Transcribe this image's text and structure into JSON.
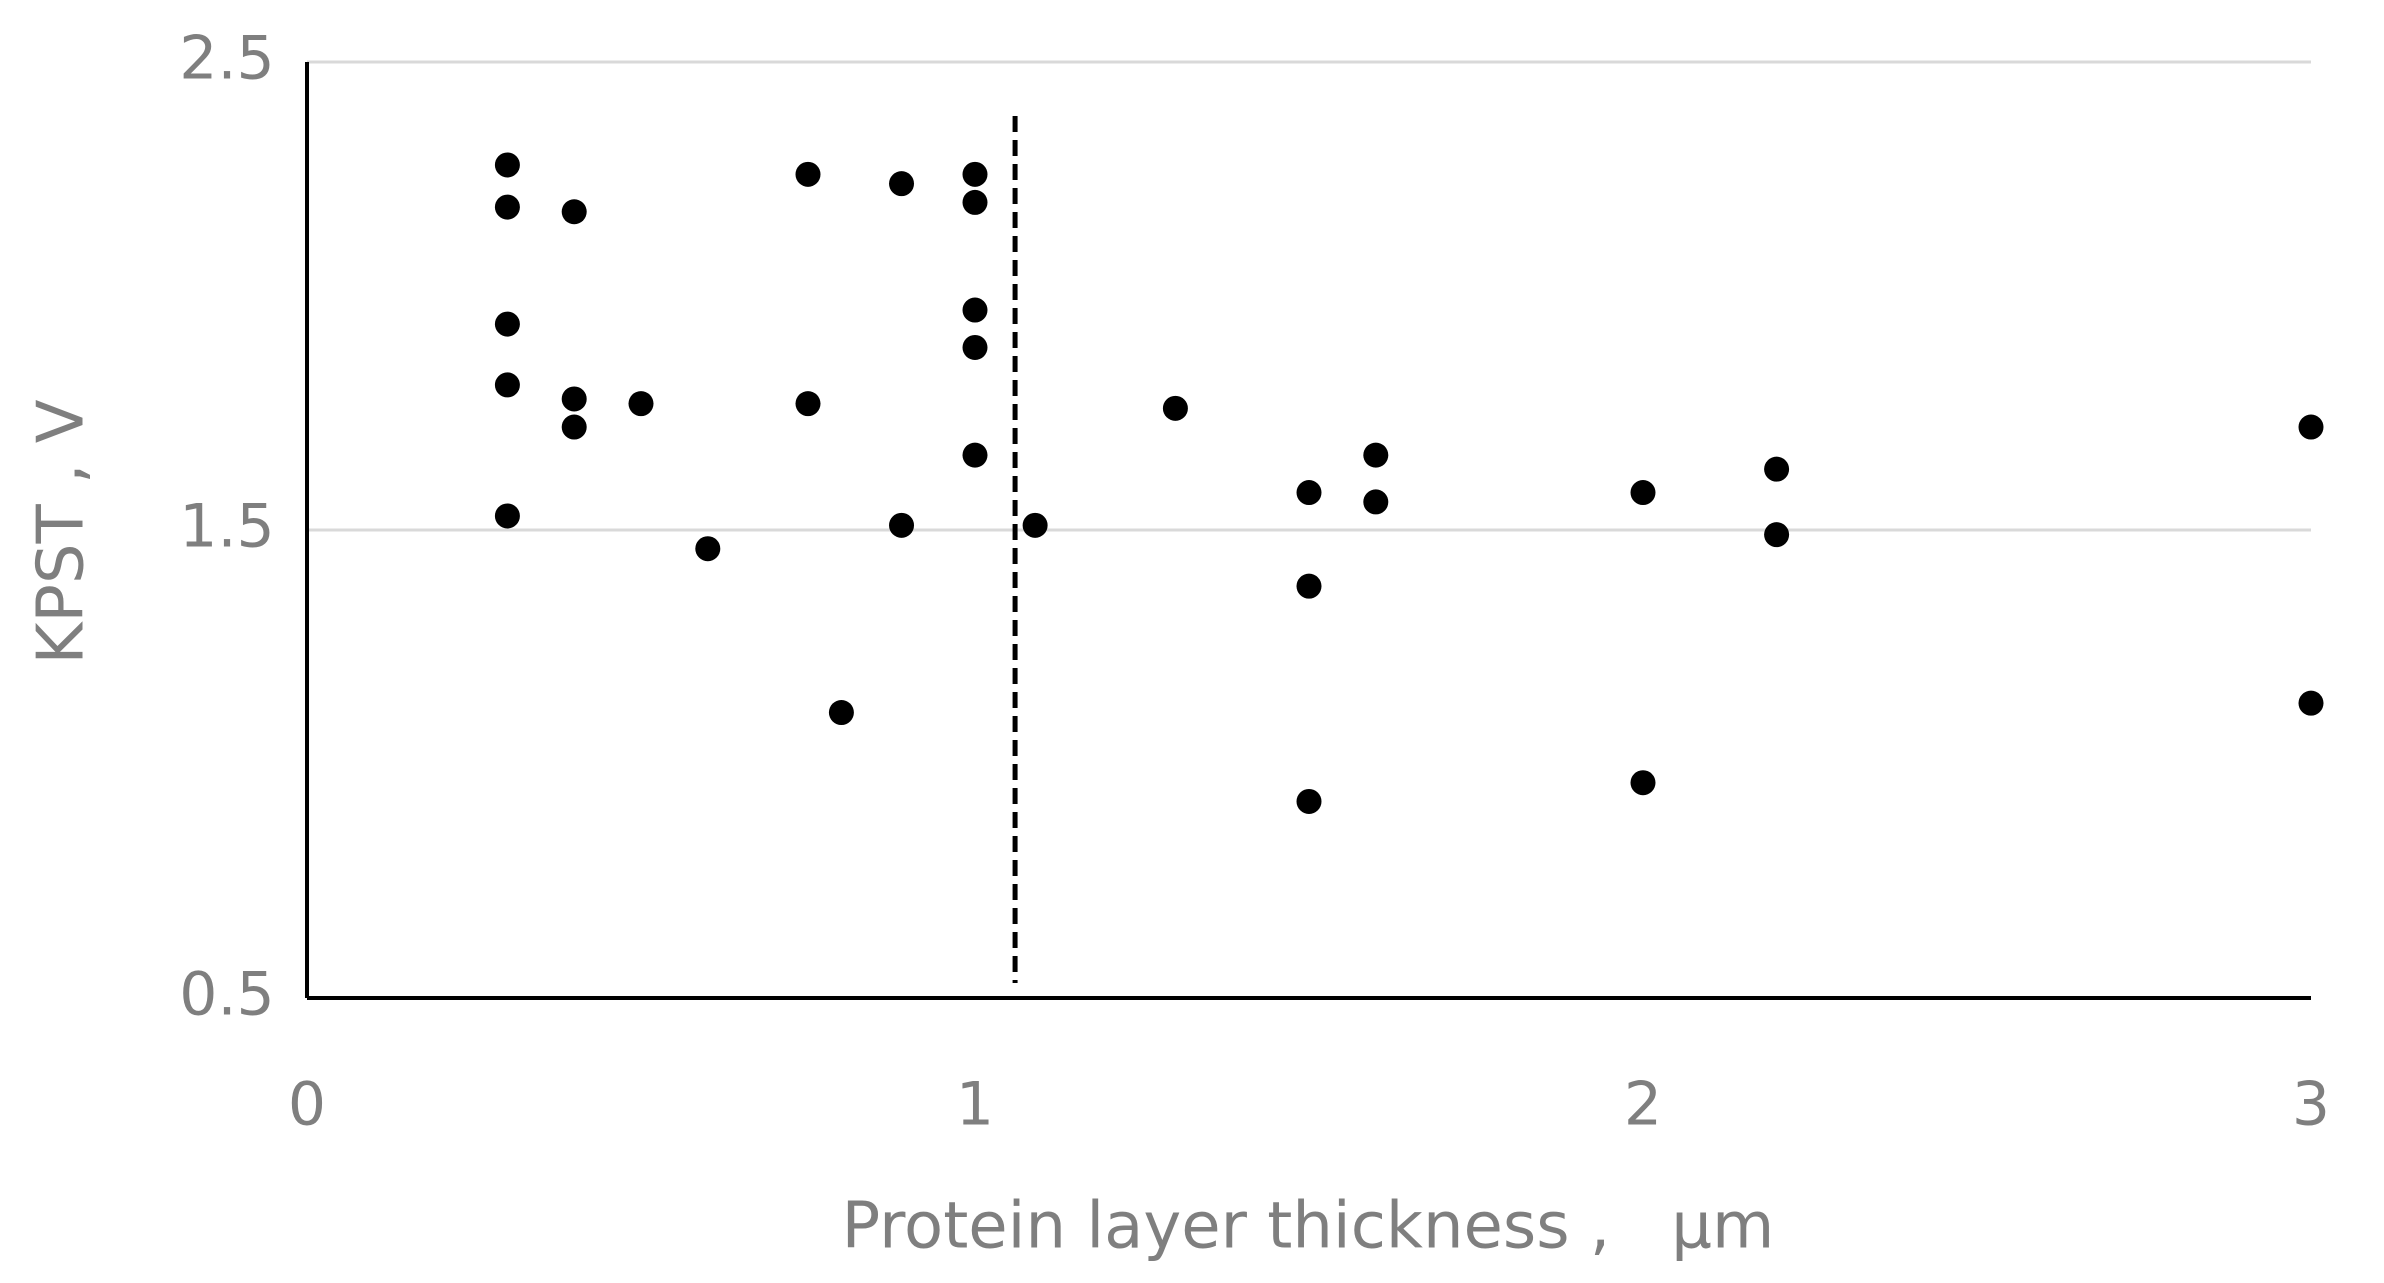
{
  "chart_data": {
    "type": "scatter",
    "x_label": "Protein layer thickness ,   μm",
    "y_label": "KPST , V",
    "xlim": [
      0,
      3
    ],
    "xticks": [
      0,
      1,
      2,
      3
    ],
    "ylim": [
      0.5,
      2.5
    ],
    "yticks": [
      0.5,
      1.5,
      2.5
    ],
    "grid": true,
    "color": "#000000",
    "vline_x": 1.06,
    "x": [
      0.3,
      0.3,
      0.4,
      0.3,
      0.3,
      0.4,
      0.4,
      0.5,
      0.3,
      0.6,
      0.75,
      0.75,
      0.8,
      0.89,
      0.89,
      1.0,
      1.0,
      1.0,
      1.0,
      1.0,
      1.09,
      1.3,
      1.5,
      1.5,
      1.5,
      1.6,
      1.6,
      2.0,
      2.0,
      2.2,
      2.2,
      3.0,
      3.0
    ],
    "values": [
      2.28,
      2.19,
      2.18,
      1.94,
      1.81,
      1.78,
      1.72,
      1.77,
      1.53,
      1.46,
      2.26,
      1.77,
      1.11,
      2.24,
      1.51,
      2.26,
      2.2,
      1.97,
      1.89,
      1.66,
      1.51,
      1.76,
      1.58,
      1.38,
      0.92,
      1.66,
      1.56,
      1.58,
      0.96,
      1.63,
      1.49,
      1.72,
      1.13
    ]
  }
}
